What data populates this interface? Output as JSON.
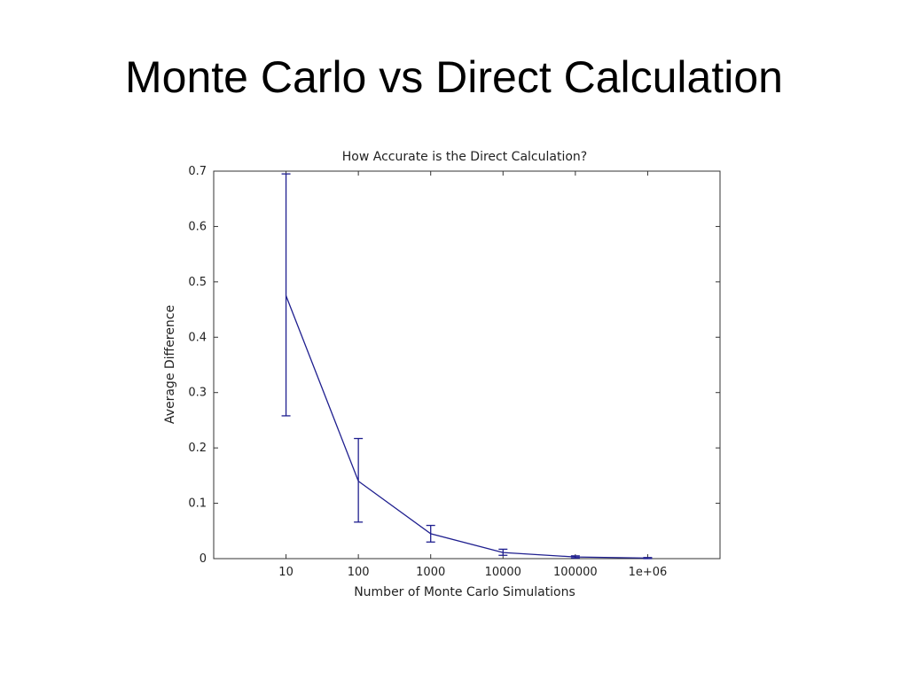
{
  "slide": {
    "title": "Monte Carlo vs Direct Calculation"
  },
  "chart_data": {
    "type": "line",
    "title": "How Accurate is the Direct Calculation?",
    "xlabel": "Number of Monte Carlo Simulations",
    "ylabel": "Average Difference",
    "categories": [
      "10",
      "100",
      "1000",
      "10000",
      "100000",
      "1e+06"
    ],
    "xlim": [
      0,
      7
    ],
    "ylim": [
      0,
      0.7
    ],
    "yticks": [
      "0",
      "0.1",
      "0.2",
      "0.3",
      "0.4",
      "0.5",
      "0.6",
      "0.7"
    ],
    "grid": false,
    "series": [
      {
        "color": "#1f1f8f",
        "values": [
          0.475,
          0.14,
          0.045,
          0.011,
          0.003,
          0.001
        ],
        "errors": [
          {
            "low": 0.258,
            "high": 0.695
          },
          {
            "low": 0.066,
            "high": 0.217
          },
          {
            "low": 0.03,
            "high": 0.06
          },
          {
            "low": 0.006,
            "high": 0.017
          },
          {
            "low": 0.001,
            "high": 0.005
          },
          {
            "low": 0.0,
            "high": 0.002
          }
        ]
      }
    ]
  }
}
